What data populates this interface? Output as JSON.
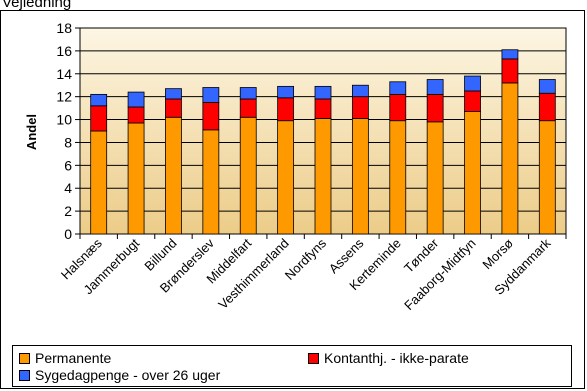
{
  "header_text": "Vejledning",
  "colors": {
    "plot_top": "#fdf6e4",
    "plot_bottom": "#eccc88",
    "grid": "#000000"
  },
  "chart_data": {
    "type": "bar",
    "stacked": true,
    "title": "",
    "xlabel": "",
    "ylabel": "Andel",
    "ylim": [
      0,
      18
    ],
    "yticks": [
      0,
      2,
      4,
      6,
      8,
      10,
      12,
      14,
      16,
      18
    ],
    "grid": true,
    "legend_position": "bottom",
    "categories": [
      "Halsnæs",
      "Jammerbugt",
      "Billund",
      "Brønderslev",
      "Middelfart",
      "Vesthimmerland",
      "Nordfyns",
      "Assens",
      "Kerteminde",
      "Tønder",
      "Faaborg-Midtfyn",
      "Morsø",
      "Syddanmark"
    ],
    "series": [
      {
        "name": "Permanente",
        "color": "#ff9900",
        "values": [
          9.0,
          9.7,
          10.2,
          9.1,
          10.2,
          9.9,
          10.1,
          10.1,
          9.9,
          9.8,
          10.7,
          13.2,
          9.9
        ]
      },
      {
        "name": "Kontanthj. - ikke-parate",
        "color": "#ff0000",
        "values": [
          2.2,
          1.4,
          1.6,
          2.4,
          1.6,
          2.0,
          1.7,
          1.9,
          2.3,
          2.4,
          1.8,
          2.1,
          2.4
        ]
      },
      {
        "name": "Sygedagpenge - over 26 uger",
        "color": "#3366ff",
        "values": [
          1.0,
          1.3,
          0.9,
          1.3,
          1.0,
          1.0,
          1.1,
          1.0,
          1.1,
          1.3,
          1.3,
          0.8,
          1.2
        ]
      }
    ]
  }
}
